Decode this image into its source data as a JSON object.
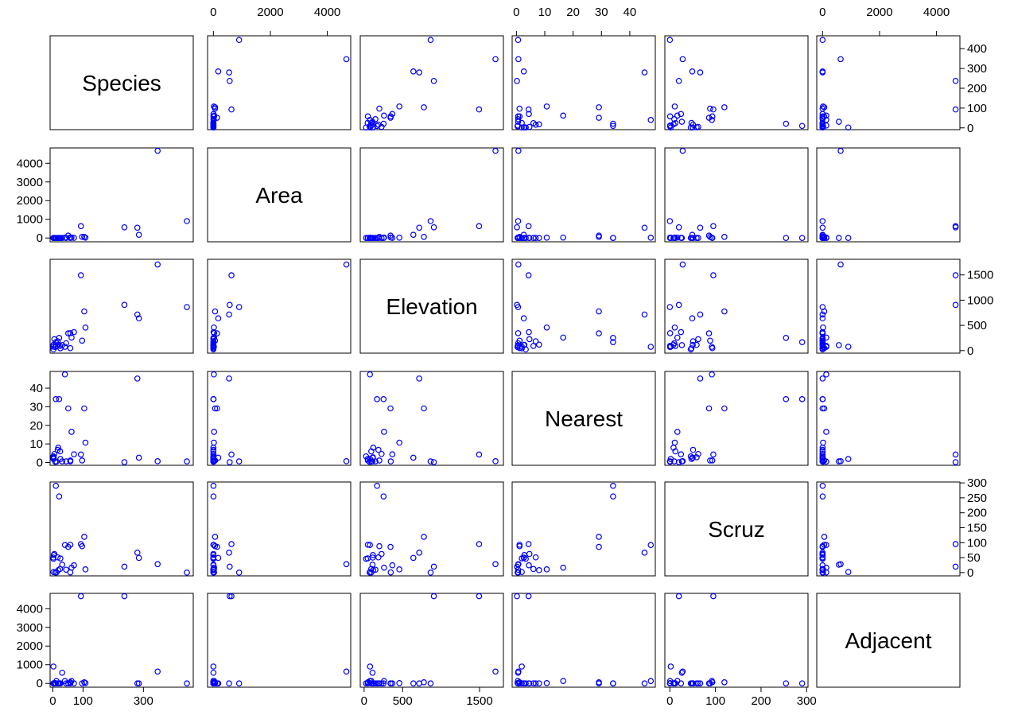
{
  "chart_data": {
    "type": "scatter",
    "subtype": "scatterplot-matrix",
    "marker_color": "#0000ff",
    "marker_shape": "open-circle",
    "variables": [
      "Species",
      "Area",
      "Elevation",
      "Nearest",
      "Scruz",
      "Adjacent"
    ],
    "axes": {
      "Species": {
        "lim": [
          -9,
          465
        ],
        "ticks": [
          "0",
          "100",
          "200",
          "300",
          "400"
        ]
      },
      "Area": {
        "lim": [
          -204,
          4821
        ],
        "ticks": [
          "0",
          "1000",
          "2000",
          "3000",
          "4000"
        ],
        "alt_ticks": [
          "0",
          "2000",
          "4000"
        ]
      },
      "Elevation": {
        "lim": [
          -50,
          1810
        ],
        "ticks": [
          "0",
          "500",
          "1000",
          "1500"
        ]
      },
      "Nearest": {
        "lim": [
          -1.5,
          49.0
        ],
        "ticks": [
          "0",
          "10",
          "20",
          "30",
          "40"
        ]
      },
      "Scruz": {
        "lim": [
          -11.0,
          303.0
        ],
        "ticks": [
          "0",
          "50",
          "100",
          "150",
          "200",
          "250",
          "300"
        ],
        "alt_ticks": [
          "0",
          "100",
          "200",
          "300"
        ]
      },
      "Adjacent": {
        "lim": [
          -204,
          4821
        ],
        "ticks": [
          "0",
          "1000",
          "2000",
          "3000",
          "4000"
        ],
        "alt_ticks": [
          "0",
          "2000",
          "4000"
        ]
      }
    },
    "observations": {
      "Species": [
        58,
        31,
        3,
        25,
        2,
        18,
        24,
        10,
        8,
        2,
        97,
        93,
        58,
        5,
        40,
        347,
        51,
        2,
        104,
        108,
        12,
        70,
        280,
        237,
        444,
        62,
        285,
        44,
        16,
        21
      ],
      "Area": [
        25.09,
        1.24,
        0.21,
        0.1,
        0.05,
        0.34,
        0.08,
        2.33,
        0.03,
        0.18,
        58.27,
        634.49,
        0.57,
        0.78,
        17.35,
        4669.32,
        129.49,
        0.01,
        59.56,
        17.95,
        0.23,
        4.89,
        551.62,
        572.33,
        903.82,
        24.08,
        170.92,
        1.84,
        1.24,
        2.85
      ],
      "Elevation": [
        346,
        109,
        114,
        46,
        77,
        119,
        93,
        168,
        71,
        112,
        198,
        1494,
        49,
        227,
        76,
        1707,
        343,
        25,
        777,
        458,
        94,
        367,
        716,
        906,
        864,
        259,
        640,
        147,
        186,
        253
      ],
      "Nearest": [
        0.6,
        0.6,
        2.8,
        1.9,
        1.9,
        8.0,
        6.0,
        34.1,
        0.4,
        2.6,
        1.1,
        4.3,
        1.1,
        4.6,
        47.4,
        0.7,
        29.1,
        3.3,
        29.1,
        10.7,
        0.5,
        4.4,
        45.2,
        0.2,
        0.6,
        16.5,
        2.6,
        0.6,
        6.8,
        34.1
      ],
      "Scruz": [
        0.6,
        26.3,
        58.7,
        47.4,
        1.9,
        8.0,
        12.0,
        290.2,
        0.4,
        50.2,
        88.3,
        95.3,
        93.1,
        62.2,
        92.2,
        28.1,
        85.9,
        45.9,
        119.6,
        10.7,
        0.6,
        24.4,
        66.6,
        19.8,
        0.0,
        16.5,
        49.2,
        9.6,
        50.9,
        254.7
      ],
      "Adjacent": [
        1.84,
        572.33,
        0.78,
        0.18,
        903.82,
        1.84,
        0.34,
        2.85,
        17.95,
        0.1,
        0.57,
        4669.32,
        58.27,
        0.21,
        129.49,
        634.49,
        0.03,
        0.01,
        59.56,
        17.95,
        129.49,
        0.1,
        0.57,
        4669.32,
        0.34,
        129.49,
        0.57,
        0.01,
        0.03,
        2.85
      ]
    }
  }
}
